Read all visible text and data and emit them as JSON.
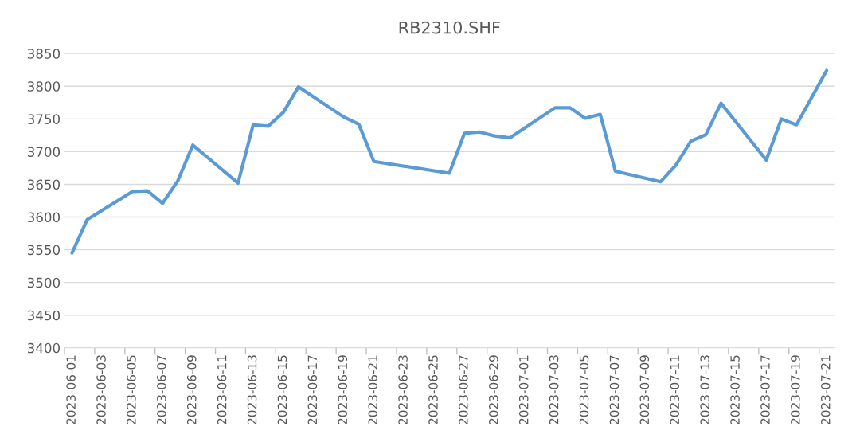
{
  "chart_data": {
    "type": "line",
    "title": "RB2310.SHF",
    "x": [
      "2023-06-01",
      "2023-06-02",
      "2023-06-05",
      "2023-06-06",
      "2023-06-07",
      "2023-06-08",
      "2023-06-09",
      "2023-06-12",
      "2023-06-13",
      "2023-06-14",
      "2023-06-15",
      "2023-06-16",
      "2023-06-19",
      "2023-06-20",
      "2023-06-21",
      "2023-06-26",
      "2023-06-27",
      "2023-06-28",
      "2023-06-29",
      "2023-06-30",
      "2023-07-03",
      "2023-07-04",
      "2023-07-05",
      "2023-07-06",
      "2023-07-07",
      "2023-07-10",
      "2023-07-11",
      "2023-07-12",
      "2023-07-13",
      "2023-07-14",
      "2023-07-17",
      "2023-07-18",
      "2023-07-19",
      "2023-07-21"
    ],
    "series": [
      {
        "color": "#5b9bd5",
        "values": [
          3545,
          3596,
          3639,
          3640,
          3621,
          3655,
          3710,
          3652,
          3741,
          3739,
          3760,
          3799,
          3753,
          3742,
          3685,
          3667,
          3728,
          3730,
          3724,
          3721,
          3767,
          3767,
          3751,
          3757,
          3670,
          3654,
          3679,
          3716,
          3726,
          3774,
          3687,
          3750,
          3741,
          3824
        ]
      }
    ],
    "ylim": [
      3400,
      3850
    ],
    "yticks": [
      3400,
      3450,
      3500,
      3550,
      3600,
      3650,
      3700,
      3750,
      3800,
      3850
    ],
    "xlim": [
      "2023-05-31T12:00",
      "2023-07-21T12:00"
    ],
    "xticks": [
      "2023-06-01",
      "2023-06-03",
      "2023-06-05",
      "2023-06-07",
      "2023-06-09",
      "2023-06-11",
      "2023-06-13",
      "2023-06-15",
      "2023-06-17",
      "2023-06-19",
      "2023-06-21",
      "2023-06-23",
      "2023-06-25",
      "2023-06-27",
      "2023-06-29",
      "2023-07-01",
      "2023-07-03",
      "2023-07-05",
      "2023-07-07",
      "2023-07-09",
      "2023-07-11",
      "2023-07-13",
      "2023-07-15",
      "2023-07-17",
      "2023-07-19",
      "2023-07-21",
      {
        "value": "2023-05-31T12:00",
        "label": null
      },
      {
        "value": "2023-06-02T12:00",
        "label": null
      },
      {
        "value": "2023-06-04T12:00",
        "label": null
      },
      {
        "value": "2023-06-06T12:00",
        "label": null
      },
      {
        "value": "2023-06-08T12:00",
        "label": null
      },
      {
        "value": "2023-06-10T12:00",
        "label": null
      },
      {
        "value": "2023-06-12T12:00",
        "label": null
      },
      {
        "value": "2023-06-14T12:00",
        "label": null
      },
      {
        "value": "2023-06-16T12:00",
        "label": null
      },
      {
        "value": "2023-06-18T12:00",
        "label": null
      },
      {
        "value": "2023-06-20T12:00",
        "label": null
      },
      {
        "value": "2023-06-22T12:00",
        "label": null
      },
      {
        "value": "2023-06-24T12:00",
        "label": null
      },
      {
        "value": "2023-06-26T12:00",
        "label": null
      },
      {
        "value": "2023-06-28T12:00",
        "label": null
      },
      {
        "value": "2023-06-30T12:00",
        "label": null
      },
      {
        "value": "2023-07-02T12:00",
        "label": null
      },
      {
        "value": "2023-07-04T12:00",
        "label": null
      },
      {
        "value": "2023-07-06T12:00",
        "label": null
      },
      {
        "value": "2023-07-08T12:00",
        "label": null
      },
      {
        "value": "2023-07-10T12:00",
        "label": null
      },
      {
        "value": "2023-07-12T12:00",
        "label": null
      },
      {
        "value": "2023-07-14T12:00",
        "label": null
      },
      {
        "value": "2023-07-16T12:00",
        "label": null
      },
      {
        "value": "2023-07-18T12:00",
        "label": null
      },
      {
        "value": "2023-07-20T12:00",
        "label": null
      }
    ],
    "grid": "y",
    "line_style": "solid"
  }
}
